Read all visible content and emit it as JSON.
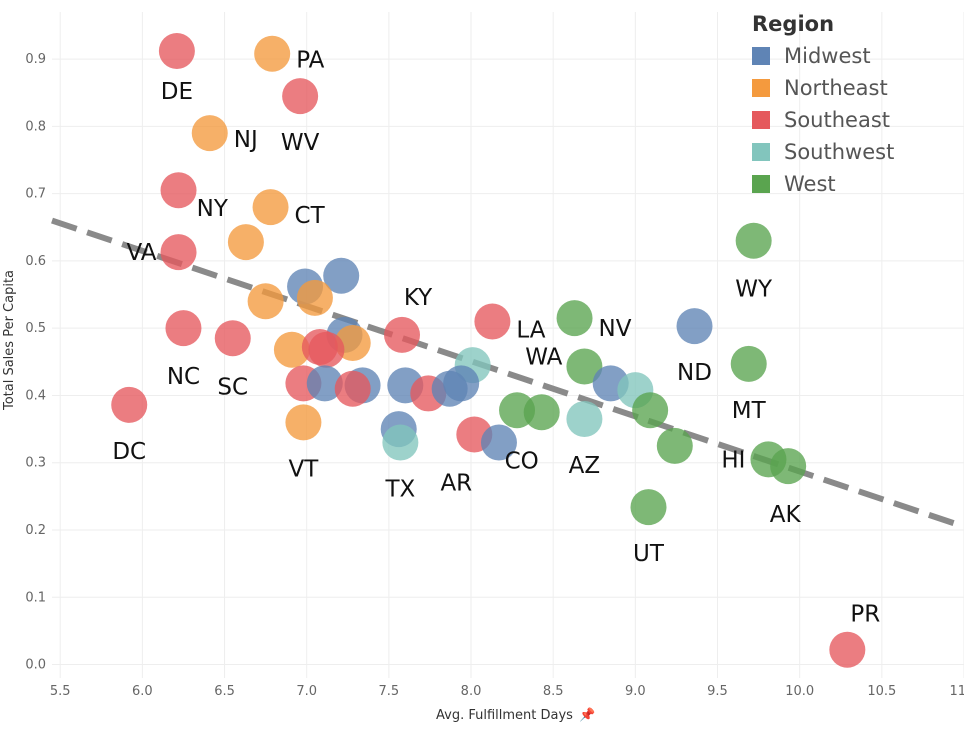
{
  "chart_data": {
    "type": "scatter",
    "xlabel": "Avg. Fulfillment Days",
    "ylabel": "Total Sales Per Capita",
    "xlim": [
      5.45,
      11.0
    ],
    "ylim": [
      -0.02,
      0.97
    ],
    "xticks": [
      "5.5",
      "6.0",
      "6.5",
      "7.0",
      "7.5",
      "8.0",
      "8.5",
      "9.0",
      "9.5",
      "10.0",
      "10.5",
      "11.0"
    ],
    "yticks": [
      "0.0",
      "0.1",
      "0.2",
      "0.3",
      "0.4",
      "0.5",
      "0.6",
      "0.7",
      "0.8",
      "0.9"
    ],
    "grid": true,
    "legend_placement": "top-right",
    "legend_title": "Region",
    "series": [
      {
        "name": "Midwest",
        "color": "#5f84b5"
      },
      {
        "name": "Northeast",
        "color": "#f49a3e"
      },
      {
        "name": "Southeast",
        "color": "#e5595d"
      },
      {
        "name": "Southwest",
        "color": "#82c5bd"
      },
      {
        "name": "West",
        "color": "#5aa44f"
      }
    ],
    "trendline": {
      "x": [
        5.45,
        11.0
      ],
      "y": [
        0.66,
        0.205
      ]
    },
    "points": [
      {
        "region": "Southeast",
        "x": 6.21,
        "y": 0.912,
        "label": "DE"
      },
      {
        "region": "Northeast",
        "x": 6.79,
        "y": 0.908,
        "label": "PA"
      },
      {
        "region": "Southeast",
        "x": 6.96,
        "y": 0.845,
        "label": "WV"
      },
      {
        "region": "Northeast",
        "x": 6.41,
        "y": 0.79,
        "label": "NJ"
      },
      {
        "region": "Southeast",
        "x": 6.22,
        "y": 0.705,
        "label": ""
      },
      {
        "region": "Northeast",
        "x": 6.78,
        "y": 0.68,
        "label": "CT"
      },
      {
        "region": "Northeast",
        "x": 6.63,
        "y": 0.628,
        "label": "NY"
      },
      {
        "region": "Southeast",
        "x": 6.22,
        "y": 0.613,
        "label": "VA"
      },
      {
        "region": "Midwest",
        "x": 6.99,
        "y": 0.562,
        "label": ""
      },
      {
        "region": "Midwest",
        "x": 7.21,
        "y": 0.578,
        "label": ""
      },
      {
        "region": "Northeast",
        "x": 6.75,
        "y": 0.54,
        "label": ""
      },
      {
        "region": "Northeast",
        "x": 7.05,
        "y": 0.545,
        "label": ""
      },
      {
        "region": "Southeast",
        "x": 6.25,
        "y": 0.5,
        "label": "NC"
      },
      {
        "region": "Southeast",
        "x": 6.55,
        "y": 0.485,
        "label": "SC"
      },
      {
        "region": "Southeast",
        "x": 7.58,
        "y": 0.49,
        "label": "KY"
      },
      {
        "region": "Southeast",
        "x": 8.13,
        "y": 0.51,
        "label": "LA"
      },
      {
        "region": "Midwest",
        "x": 7.23,
        "y": 0.49,
        "label": ""
      },
      {
        "region": "Northeast",
        "x": 7.28,
        "y": 0.478,
        "label": ""
      },
      {
        "region": "Northeast",
        "x": 6.91,
        "y": 0.468,
        "label": ""
      },
      {
        "region": "Southeast",
        "x": 7.08,
        "y": 0.472,
        "label": ""
      },
      {
        "region": "Southeast",
        "x": 7.12,
        "y": 0.468,
        "label": ""
      },
      {
        "region": "West",
        "x": 8.63,
        "y": 0.515,
        "label": "NV"
      },
      {
        "region": "Midwest",
        "x": 9.36,
        "y": 0.503,
        "label": "ND"
      },
      {
        "region": "West",
        "x": 9.72,
        "y": 0.63,
        "label": "WY"
      },
      {
        "region": "West",
        "x": 9.69,
        "y": 0.447,
        "label": "MT"
      },
      {
        "region": "Southwest",
        "x": 8.01,
        "y": 0.445,
        "label": ""
      },
      {
        "region": "West",
        "x": 8.69,
        "y": 0.443,
        "label": "WA"
      },
      {
        "region": "Southeast",
        "x": 6.98,
        "y": 0.418,
        "label": ""
      },
      {
        "region": "Midwest",
        "x": 7.11,
        "y": 0.418,
        "label": ""
      },
      {
        "region": "Midwest",
        "x": 7.34,
        "y": 0.415,
        "label": ""
      },
      {
        "region": "Midwest",
        "x": 7.6,
        "y": 0.415,
        "label": ""
      },
      {
        "region": "Southeast",
        "x": 7.74,
        "y": 0.403,
        "label": ""
      },
      {
        "region": "Midwest",
        "x": 7.87,
        "y": 0.41,
        "label": ""
      },
      {
        "region": "Midwest",
        "x": 7.94,
        "y": 0.418,
        "label": ""
      },
      {
        "region": "Southeast",
        "x": 7.28,
        "y": 0.41,
        "label": ""
      },
      {
        "region": "Midwest",
        "x": 8.85,
        "y": 0.418,
        "label": ""
      },
      {
        "region": "Southwest",
        "x": 9.0,
        "y": 0.408,
        "label": ""
      },
      {
        "region": "West",
        "x": 9.09,
        "y": 0.378,
        "label": ""
      },
      {
        "region": "West",
        "x": 8.28,
        "y": 0.378,
        "label": ""
      },
      {
        "region": "West",
        "x": 8.43,
        "y": 0.375,
        "label": "CO"
      },
      {
        "region": "Southwest",
        "x": 8.69,
        "y": 0.365,
        "label": "AZ"
      },
      {
        "region": "Northeast",
        "x": 6.98,
        "y": 0.36,
        "label": "VT"
      },
      {
        "region": "Southeast",
        "x": 5.92,
        "y": 0.386,
        "label": "DC"
      },
      {
        "region": "Midwest",
        "x": 7.56,
        "y": 0.35,
        "label": ""
      },
      {
        "region": "Southwest",
        "x": 7.57,
        "y": 0.33,
        "label": "TX"
      },
      {
        "region": "Southeast",
        "x": 8.02,
        "y": 0.342,
        "label": "AR"
      },
      {
        "region": "Midwest",
        "x": 8.17,
        "y": 0.33,
        "label": ""
      },
      {
        "region": "West",
        "x": 9.24,
        "y": 0.325,
        "label": ""
      },
      {
        "region": "West",
        "x": 9.81,
        "y": 0.305,
        "label": "HI"
      },
      {
        "region": "West",
        "x": 9.93,
        "y": 0.295,
        "label": "AK"
      },
      {
        "region": "West",
        "x": 9.08,
        "y": 0.234,
        "label": "UT"
      },
      {
        "region": "Southeast",
        "x": 10.29,
        "y": 0.022,
        "label": "PR"
      }
    ]
  },
  "ui": {
    "pin_icon": "pin-icon"
  }
}
